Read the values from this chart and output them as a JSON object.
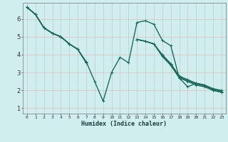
{
  "background_color": "#d0eeee",
  "grid_color_x": "#c8c8d8",
  "grid_color_y": "#e8c8c8",
  "line_color": "#1a6b5a",
  "xlabel": "Humidex (Indice chaleur)",
  "xlim": [
    -0.5,
    23.5
  ],
  "ylim": [
    0.7,
    6.9
  ],
  "xticks": [
    0,
    1,
    2,
    3,
    4,
    5,
    6,
    7,
    8,
    9,
    10,
    11,
    12,
    13,
    14,
    15,
    16,
    17,
    18,
    19,
    20,
    21,
    22,
    23
  ],
  "yticks": [
    1,
    2,
    3,
    4,
    5,
    6
  ],
  "series": [
    [
      6.65,
      6.25,
      5.5,
      5.2,
      5.0,
      4.6,
      4.3,
      3.6,
      2.5,
      1.4,
      3.0,
      3.85,
      3.55,
      5.8,
      5.9,
      5.7,
      4.8,
      4.5,
      2.7,
      2.2,
      2.4,
      2.3,
      2.0,
      1.9
    ],
    [
      6.65,
      6.25,
      5.5,
      5.2,
      5.0,
      4.6,
      4.3,
      3.55,
      null,
      null,
      null,
      null,
      null,
      4.85,
      4.75,
      4.6,
      4.0,
      3.5,
      2.8,
      2.6,
      2.4,
      2.3,
      2.1,
      2.0
    ],
    [
      6.65,
      6.25,
      5.5,
      5.2,
      5.0,
      4.6,
      4.3,
      3.55,
      null,
      null,
      null,
      null,
      null,
      4.85,
      4.75,
      4.6,
      3.95,
      3.45,
      2.75,
      2.55,
      2.35,
      2.25,
      2.05,
      1.95
    ],
    [
      6.65,
      6.25,
      5.5,
      5.2,
      5.0,
      4.6,
      4.3,
      3.55,
      null,
      null,
      null,
      null,
      null,
      4.85,
      4.75,
      4.6,
      3.9,
      3.4,
      2.7,
      2.5,
      2.3,
      2.2,
      2.0,
      1.9
    ]
  ]
}
